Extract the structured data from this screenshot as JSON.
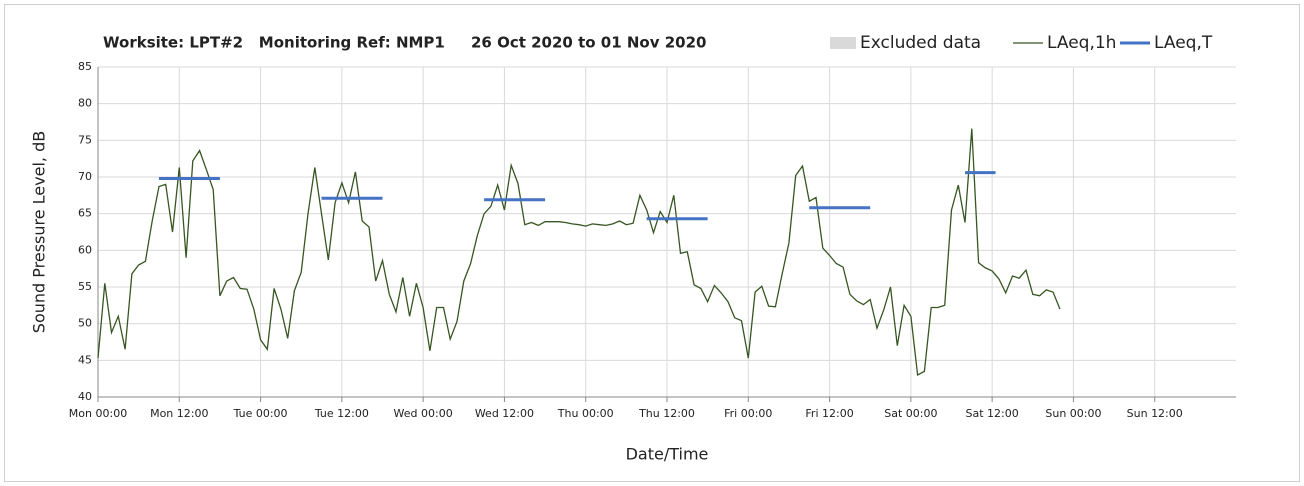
{
  "chart_data": {
    "type": "line",
    "title": "Worksite: LPT#2   Monitoring Ref: NMP1     26 Oct 2020 to 01 Nov 2020",
    "x_label": "Date/Time",
    "y_label": "Sound Pressure Level, dB",
    "xlim": [
      0,
      168
    ],
    "ylim": [
      40,
      85
    ],
    "xticks": [
      {
        "value": 0,
        "label": "Mon 00:00"
      },
      {
        "value": 12,
        "label": "Mon 12:00"
      },
      {
        "value": 24,
        "label": "Tue 00:00"
      },
      {
        "value": 36,
        "label": "Tue 12:00"
      },
      {
        "value": 48,
        "label": "Wed 00:00"
      },
      {
        "value": 60,
        "label": "Wed 12:00"
      },
      {
        "value": 72,
        "label": "Thu 00:00"
      },
      {
        "value": 84,
        "label": "Thu 12:00"
      },
      {
        "value": 96,
        "label": "Fri 00:00"
      },
      {
        "value": 108,
        "label": "Fri 12:00"
      },
      {
        "value": 120,
        "label": "Sat 00:00"
      },
      {
        "value": 132,
        "label": "Sat 12:00"
      },
      {
        "value": 144,
        "label": "Sun 00:00"
      },
      {
        "value": 156,
        "label": "Sun 12:00"
      }
    ],
    "yticks": [
      40,
      45,
      50,
      55,
      60,
      65,
      70,
      75,
      80,
      85
    ],
    "grid": true,
    "excluded_data": {
      "name": "Excluded data",
      "color": "#d9d9d9"
    },
    "series": [
      {
        "name": "LAeq,1h",
        "color": "#375623",
        "x": [
          0,
          1,
          2,
          3,
          4,
          5,
          6,
          7,
          8,
          9,
          10,
          11,
          12,
          13,
          14,
          15,
          16,
          17,
          18,
          19,
          20,
          21,
          22,
          23,
          24,
          25,
          26,
          27,
          28,
          29,
          30,
          31,
          32,
          33,
          34,
          35,
          36,
          37,
          38,
          39,
          40,
          41,
          42,
          43,
          44,
          45,
          46,
          47,
          48,
          49,
          50,
          51,
          52,
          53,
          54,
          55,
          56,
          57,
          58,
          59,
          60,
          61,
          62,
          63,
          64,
          65,
          66,
          67,
          68,
          69,
          70,
          71,
          72,
          73,
          74,
          75,
          76,
          77,
          78,
          79,
          80,
          81,
          82,
          83,
          84,
          85,
          86,
          87,
          88,
          89,
          90,
          91,
          92,
          93,
          94,
          95,
          96,
          97,
          98,
          99,
          100,
          101,
          102,
          103,
          104,
          105,
          106,
          107,
          108,
          109,
          110,
          111,
          112,
          113,
          114,
          115,
          116,
          117,
          118,
          119,
          120,
          121,
          122,
          123,
          124,
          125,
          126,
          127,
          128,
          129,
          130,
          131,
          132,
          133,
          134,
          135,
          136,
          137,
          138,
          139,
          140,
          141,
          142
        ],
        "values": [
          45.3,
          55.5,
          48.8,
          51,
          46.5,
          56.8,
          58,
          58.5,
          64,
          68.7,
          69,
          62.5,
          71.3,
          59,
          72.2,
          73.6,
          71,
          68.3,
          53.8,
          55.8,
          56.3,
          54.8,
          54.7,
          52,
          47.8,
          46.5,
          54.8,
          52,
          48,
          54.5,
          57,
          65,
          71.3,
          65,
          58.7,
          66.5,
          69.2,
          66.5,
          70.7,
          64,
          63.2,
          55.8,
          58.6,
          54,
          51.6,
          56.3,
          51,
          55.5,
          52.2,
          46.3,
          52.2,
          52.2,
          47.9,
          50.3,
          55.8,
          58.2,
          62,
          65,
          66,
          68.9,
          65.5,
          71.6,
          69.1,
          63.5,
          63.8,
          63.4,
          63.9,
          63.9,
          63.9,
          63.8,
          63.6,
          63.5,
          63.3,
          63.6,
          63.5,
          63.4,
          63.6,
          64,
          63.5,
          63.7,
          67.5,
          65.5,
          62.4,
          65.3,
          63.8,
          67.5,
          59.6,
          59.8,
          55.3,
          54.8,
          53,
          55.2,
          54.2,
          53,
          50.8,
          50.4,
          45.3,
          54.3,
          55.1,
          52.4,
          52.3,
          56.8,
          61,
          70.2,
          71.5,
          66.7,
          67.2,
          60.3,
          59.3,
          58.2,
          57.7,
          54,
          53.1,
          52.6,
          53.3,
          49.4,
          51.9,
          55,
          47,
          52.5,
          51,
          43,
          43.5,
          52.2,
          52.2,
          52.5,
          65.5,
          68.9,
          63.8,
          76.6,
          58.3,
          57.6,
          57.2,
          56.1,
          54.2,
          56.5,
          56.2,
          57.3,
          54,
          53.8,
          54.6,
          54.3,
          52
        ]
      },
      {
        "name": "LAeq,T",
        "color": "#4472c4",
        "x_start": [
          9,
          33,
          57,
          81,
          105,
          128
        ],
        "x_end": [
          18,
          42,
          66,
          90,
          114,
          132.5
        ],
        "values": [
          69.8,
          67.1,
          66.9,
          64.3,
          65.8,
          70.6
        ]
      }
    ]
  }
}
